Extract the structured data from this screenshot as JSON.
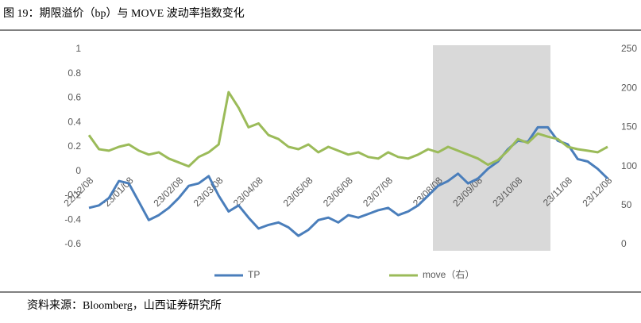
{
  "chart_data": {
    "type": "line",
    "title": "图 19：期限溢价（bp）与 MOVE 波动率指数变化",
    "source": "资料来源：Bloomberg，山西证券研究所",
    "categories": [
      "22/12/08",
      null,
      null,
      null,
      "23/01/08",
      null,
      null,
      null,
      null,
      "23/02/08",
      null,
      null,
      null,
      "23/03/08",
      null,
      null,
      null,
      "23/04/08",
      null,
      null,
      null,
      null,
      "23/05/08",
      null,
      null,
      null,
      "23/06/08",
      null,
      null,
      null,
      "23/07/08",
      null,
      null,
      null,
      null,
      "23/08/08",
      null,
      null,
      null,
      "23/09/08",
      null,
      null,
      null,
      "23/10/08",
      null,
      null,
      null,
      null,
      "23/11/08",
      null,
      null,
      null,
      "23/12/08"
    ],
    "series": [
      {
        "name": "TP",
        "color": "#4a7ebb",
        "axis": "y",
        "values": [
          -0.3,
          -0.28,
          -0.22,
          -0.08,
          -0.1,
          -0.25,
          -0.4,
          -0.36,
          -0.3,
          -0.22,
          -0.12,
          -0.1,
          -0.04,
          -0.2,
          -0.33,
          -0.28,
          -0.38,
          -0.47,
          -0.44,
          -0.42,
          -0.46,
          -0.53,
          -0.48,
          -0.4,
          -0.38,
          -0.42,
          -0.36,
          -0.38,
          -0.35,
          -0.32,
          -0.3,
          -0.36,
          -0.33,
          -0.28,
          -0.2,
          -0.12,
          -0.08,
          -0.02,
          -0.1,
          -0.06,
          0.02,
          0.08,
          0.18,
          0.25,
          0.24,
          0.36,
          0.36,
          0.25,
          0.22,
          0.1,
          0.08,
          0.02,
          -0.06
        ]
      },
      {
        "name": "move（右）",
        "color": "#9bbb59",
        "axis": "y2",
        "values": [
          140,
          122,
          120,
          125,
          128,
          120,
          115,
          118,
          110,
          105,
          100,
          112,
          118,
          128,
          195,
          175,
          150,
          155,
          140,
          135,
          125,
          122,
          128,
          118,
          125,
          120,
          115,
          118,
          112,
          110,
          118,
          112,
          110,
          115,
          122,
          118,
          125,
          120,
          115,
          110,
          102,
          108,
          120,
          135,
          130,
          142,
          138,
          135,
          125,
          122,
          120,
          118,
          125
        ]
      }
    ],
    "ylim": [
      -0.6,
      1
    ],
    "yticks": [
      -0.6,
      -0.4,
      -0.2,
      0,
      0.2,
      0.4,
      0.6,
      0.8,
      1
    ],
    "y2lim": [
      0,
      250
    ],
    "y2ticks": [
      0,
      50,
      100,
      150,
      200,
      250
    ],
    "grid": false,
    "legend": "bottom"
  }
}
